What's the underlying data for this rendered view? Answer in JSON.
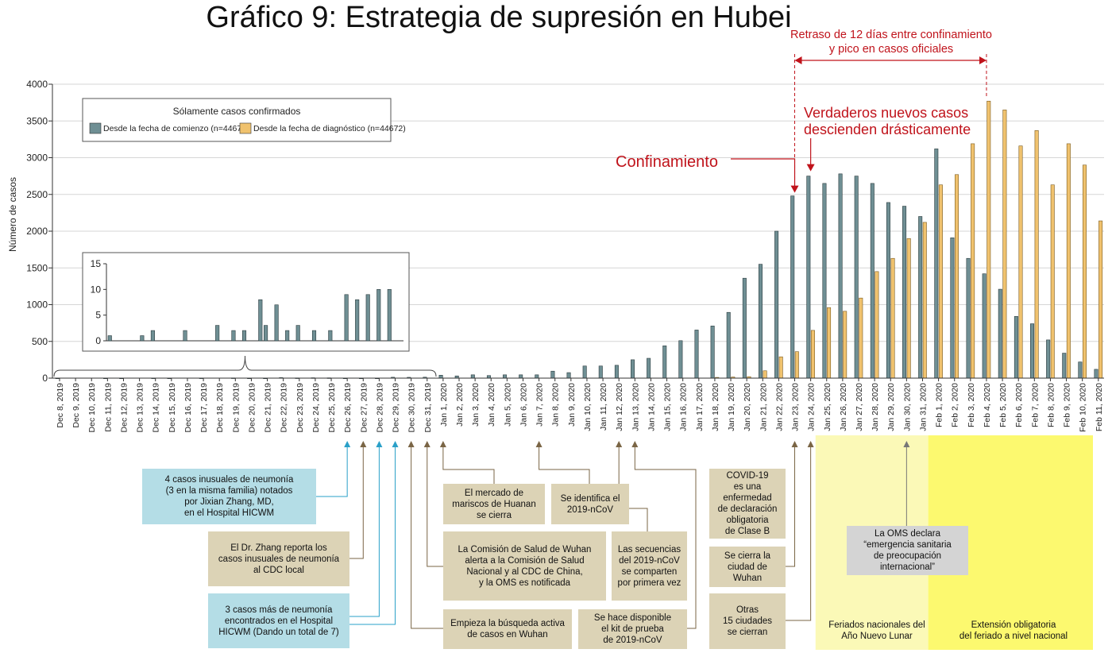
{
  "chart_data": {
    "type": "bar",
    "title": "Gráfico 9: Estrategia de supresión en Hubei",
    "ylabel": "Número de casos",
    "ylim": [
      0,
      4000
    ],
    "yticks": [
      0,
      500,
      1000,
      1500,
      2000,
      2500,
      3000,
      3500,
      4000
    ],
    "categories": [
      "Dec 8, 2019",
      "Dec 9, 2019",
      "Dec 10, 2019",
      "Dec 11, 2019",
      "Dec 12, 2019",
      "Dec 13, 2019",
      "Dec 14, 2019",
      "Dec 15, 2019",
      "Dec 16, 2019",
      "Dec 17, 2019",
      "Dec 18, 2019",
      "Dec 19, 2019",
      "Dec 20, 2019",
      "Dec 21, 2019",
      "Dec 22, 2019",
      "Dec 23, 2019",
      "Dec 24, 2019",
      "Dec 25, 2019",
      "Dec 26, 2019",
      "Dec 27, 2019",
      "Dec 28, 2019",
      "Dec 29, 2019",
      "Dec 30, 2019",
      "Dec 31, 2019",
      "Jan 1, 2020",
      "Jan 2, 2020",
      "Jan 3, 2020",
      "Jan 4, 2020",
      "Jan 5, 2020",
      "Jan 6, 2020",
      "Jan 7, 2020",
      "Jan 8, 2020",
      "Jan 9, 2020",
      "Jan 10, 2020",
      "Jan 11, 2020",
      "Jan 12, 2020",
      "Jan 13, 2020",
      "Jan 14, 2020",
      "Jan 15, 2020",
      "Jan 16, 2020",
      "Jan 17, 2020",
      "Jan 18, 2020",
      "Jan 19, 2020",
      "Jan 20, 2020",
      "Jan 21, 2020",
      "Jan 22, 2020",
      "Jan 23, 2020",
      "Jan 24, 2020",
      "Jan 25, 2020",
      "Jan 26, 2020",
      "Jan 27, 2020",
      "Jan 28, 2020",
      "Jan 29, 2020",
      "Jan 30, 2020",
      "Jan 31, 2020",
      "Feb 1, 2020",
      "Feb 2, 2020",
      "Feb 3, 2020",
      "Feb 4, 2020",
      "Feb 5, 2020",
      "Feb 6, 2020",
      "Feb 7, 2020",
      "Feb 8, 2020",
      "Feb 9, 2020",
      "Feb 10, 2020",
      "Feb 11, 2020"
    ],
    "series": [
      {
        "name": "Desde la fecha de comienzo (n=44672)",
        "color": "#6f8f94",
        "values": [
          1,
          0,
          0,
          1,
          1,
          0,
          2,
          1,
          0,
          2,
          0,
          3,
          1,
          1,
          7,
          3,
          5,
          4,
          1,
          1,
          1,
          12,
          11,
          13,
          40,
          30,
          45,
          35,
          45,
          45,
          45,
          95,
          75,
          165,
          165,
          175,
          250,
          270,
          440,
          510,
          655,
          710,
          895,
          1360,
          1550,
          2000,
          2480,
          2750,
          2650,
          2780,
          2750,
          2650,
          2390,
          2340,
          2200,
          3120,
          1910,
          1630,
          1420,
          1210,
          840,
          740,
          520,
          340,
          220,
          120
        ]
      },
      {
        "name": "Desde la fecha de diagnóstico (n=44672)",
        "color": "#f0c26e",
        "values": [
          0,
          0,
          0,
          0,
          0,
          0,
          0,
          0,
          0,
          0,
          0,
          0,
          0,
          0,
          0,
          0,
          0,
          0,
          0,
          0,
          0,
          0,
          0,
          0,
          0,
          0,
          0,
          0,
          0,
          0,
          0,
          0,
          0,
          0,
          0,
          0,
          0,
          0,
          0,
          0,
          0,
          10,
          15,
          20,
          100,
          290,
          360,
          650,
          960,
          910,
          1090,
          1450,
          1630,
          1900,
          2120,
          2630,
          2770,
          3190,
          3770,
          3650,
          3160,
          3370,
          2630,
          3190,
          2900,
          2140
        ]
      }
    ],
    "inset": {
      "ylim": [
        0,
        15
      ],
      "yticks": [
        0,
        5,
        10,
        15
      ],
      "values": [
        1,
        0,
        0,
        0,
        0,
        0,
        1,
        0,
        2,
        0,
        0,
        0,
        0,
        0,
        2,
        0,
        0,
        0,
        0,
        0,
        3,
        0,
        0,
        2,
        0,
        2,
        0,
        0,
        8,
        3,
        0,
        7,
        0,
        2,
        0,
        3,
        0,
        0,
        2,
        0,
        0,
        2,
        0,
        0,
        9,
        0,
        8,
        0,
        9,
        0,
        10,
        0,
        10
      ]
    },
    "legend": {
      "title": "Sólamente casos confirmados",
      "placement": "top-left"
    },
    "annotations": {
      "delay_line1": "Retraso de 12 días entre confinamiento",
      "delay_line2": "y pico en casos oficiales",
      "true_cases_line1": "Verdaderos nuevos casos",
      "true_cases_line2": "descienden drásticamente",
      "lockdown": "Confinamiento"
    }
  },
  "events": {
    "e1": "4 casos inusuales de neumonía\n(3 en la misma familia) notados\npor Jixian Zhang, MD,\nen el Hospital HICWM",
    "e2": "El Dr. Zhang reporta los\ncasos inusuales de neumonía\nal CDC local",
    "e3": "3 casos más de neumonía\nencontrados en el Hospital\nHICWM (Dando un total de 7)",
    "e4": "El mercado de\nmariscos de Huanan\nse cierra",
    "e5": "Se identifica el\n2019-nCoV",
    "e6": "La Comisión de Salud de Wuhan\nalerta a la Comisión de Salud\nNacional y al CDC de China,\ny la OMS es notificada",
    "e7": "Las secuencias\ndel 2019-nCoV\nse comparten\npor primera vez",
    "e8": "Empieza la búsqueda activa\nde casos en Wuhan",
    "e9": "Se hace disponible\nel kit de prueba\nde 2019-nCoV",
    "e10": "COVID-19\nes una\nenfermedad\nde declaración\nobligatoria\nde Clase B",
    "e11": "Se cierra la\nciudad de\nWuhan",
    "e12": "Otras\n15 ciudades\nse cierran",
    "e13": "La OMS declara\n“emergencia sanitaria\nde preocupación\ninternacional”",
    "e14": "Feriados nacionales del\nAño Nuevo Lunar",
    "e15": "Extensión obligatoria\ndel feriado a nivel nacional"
  },
  "colors": {
    "onset": "#6f8f94",
    "diagnosis": "#f0c26e",
    "red": "#c0131b",
    "tan": "#dcd3b6",
    "blue": "#b4dde6",
    "holiday": "#fbf9b7",
    "extension": "#fcf96f",
    "blue_arrow": "#2aa0c8",
    "brown_arrow": "#7a6545"
  }
}
